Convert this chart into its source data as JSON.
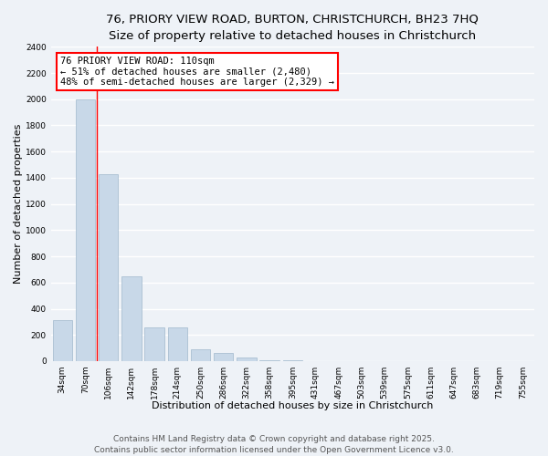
{
  "title_line1": "76, PRIORY VIEW ROAD, BURTON, CHRISTCHURCH, BH23 7HQ",
  "title_line2": "Size of property relative to detached houses in Christchurch",
  "xlabel": "Distribution of detached houses by size in Christchurch",
  "ylabel": "Number of detached properties",
  "categories": [
    "34sqm",
    "70sqm",
    "106sqm",
    "142sqm",
    "178sqm",
    "214sqm",
    "250sqm",
    "286sqm",
    "322sqm",
    "358sqm",
    "395sqm",
    "431sqm",
    "467sqm",
    "503sqm",
    "539sqm",
    "575sqm",
    "611sqm",
    "647sqm",
    "683sqm",
    "719sqm",
    "755sqm"
  ],
  "values": [
    310,
    2000,
    1430,
    650,
    260,
    260,
    90,
    60,
    30,
    10,
    5,
    0,
    0,
    0,
    0,
    0,
    0,
    0,
    0,
    0,
    0
  ],
  "bar_color": "#c8d8e8",
  "bar_edgecolor": "#a0b8cc",
  "annotation_text": "76 PRIORY VIEW ROAD: 110sqm\n← 51% of detached houses are smaller (2,480)\n48% of semi-detached houses are larger (2,329) →",
  "annotation_box_color": "white",
  "annotation_box_edgecolor": "red",
  "vline_color": "red",
  "ylim": [
    0,
    2400
  ],
  "yticks": [
    0,
    200,
    400,
    600,
    800,
    1000,
    1200,
    1400,
    1600,
    1800,
    2000,
    2200,
    2400
  ],
  "footer_line1": "Contains HM Land Registry data © Crown copyright and database right 2025.",
  "footer_line2": "Contains public sector information licensed under the Open Government Licence v3.0.",
  "bg_color": "#eef2f7",
  "grid_color": "white",
  "title_fontsize": 9.5,
  "axis_label_fontsize": 8,
  "tick_fontsize": 6.5,
  "annotation_fontsize": 7.5,
  "footer_fontsize": 6.5
}
